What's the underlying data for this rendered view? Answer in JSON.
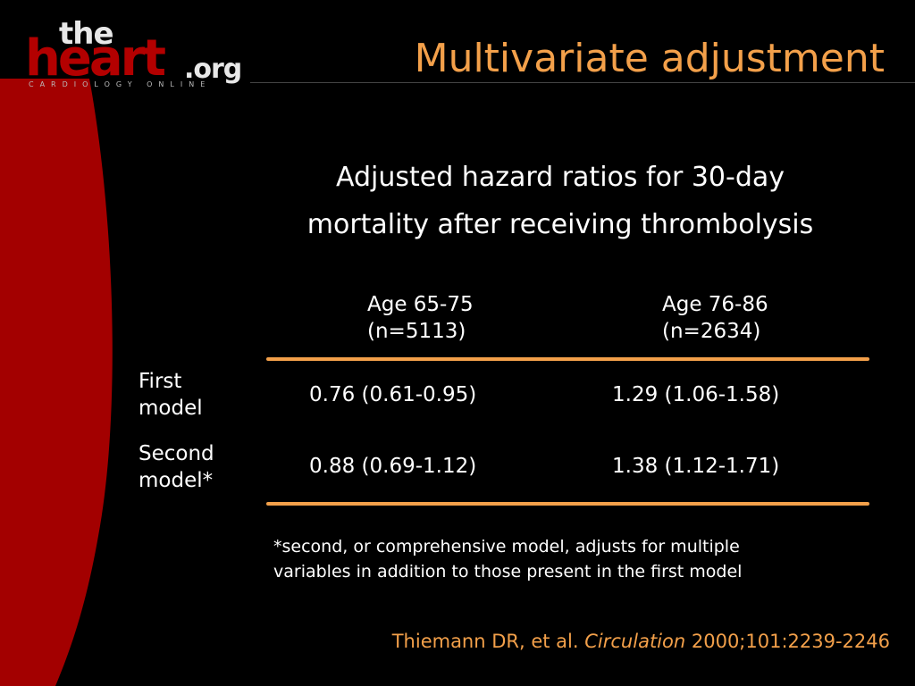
{
  "slide": {
    "title": "Multivariate adjustment",
    "subtitle_lines": [
      "Adjusted hazard ratios for 30-day",
      "mortality after receiving thrombolysis"
    ]
  },
  "logo": {
    "the": "the",
    "heart": "heart",
    "org": ".org",
    "tagline": "CARDIOLOGY ONLINE"
  },
  "table": {
    "columns": [
      {
        "line1": "Age 65-75",
        "line2": "(n=5113)"
      },
      {
        "line1": "Age 76-86",
        "line2": "(n=2634)"
      }
    ],
    "rows": [
      {
        "label_line1": "First",
        "label_line2": "model",
        "values": [
          "0.76 (0.61-0.95)",
          "1.29 (1.06-1.58)"
        ]
      },
      {
        "label_line1": "Second",
        "label_line2": "model*",
        "values": [
          "0.88 (0.69-1.12)",
          "1.38 (1.12-1.71)"
        ]
      }
    ]
  },
  "footnote_lines": [
    "*second, or comprehensive model, adjusts for multiple",
    "variables in addition to those present in the first model"
  ],
  "citation": {
    "authors": "Thiemann DR, et al.",
    "journal": "Circulation",
    "details": "2000;101:2239-2246"
  },
  "colors": {
    "accent": "#f3a04a",
    "brand_red": "#b30000",
    "background": "#000000",
    "text": "#ffffff"
  }
}
